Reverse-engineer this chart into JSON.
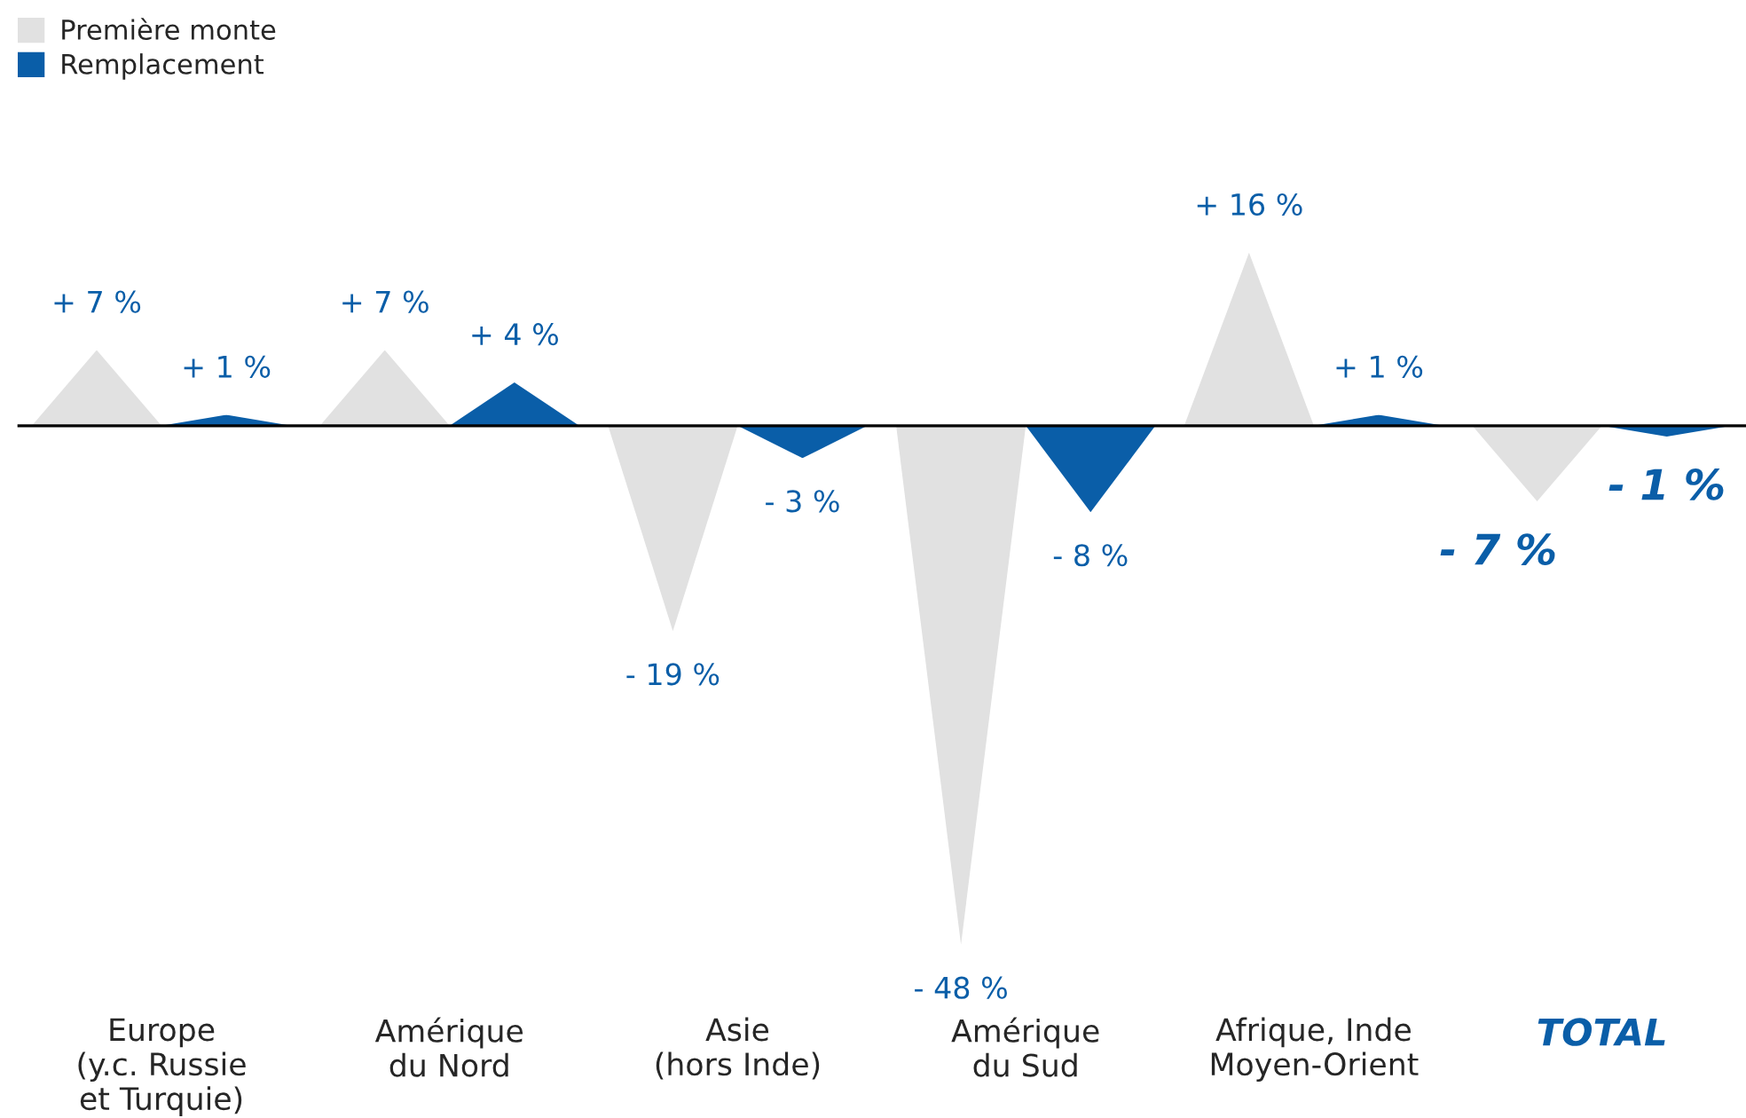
{
  "chart_data": {
    "type": "bar",
    "categories": [
      "Europe\n(y.c. Russie\net Turquie)",
      "Amérique\ndu Nord",
      "Asie\n(hors Inde)",
      "Amérique\ndu Sud",
      "Afrique, Inde\nMoyen-Orient",
      "TOTAL"
    ],
    "series": [
      {
        "name": "Première monte",
        "color": "#e1e1e1",
        "values": [
          7,
          7,
          -19,
          -48,
          16,
          -7
        ],
        "value_labels": [
          "+ 7 %",
          "+ 7 %",
          "- 19 %",
          "- 48 %",
          "+ 16 %",
          "- 7 %"
        ]
      },
      {
        "name": "Remplacement",
        "color": "#0a5ea8",
        "values": [
          1,
          4,
          -3,
          -8,
          1,
          -1
        ],
        "value_labels": [
          "+ 1 %",
          "+ 4 %",
          "- 3 %",
          "- 8 %",
          "+ 1 %",
          "- 1 %"
        ]
      }
    ],
    "legend": "top left",
    "grid": false
  }
}
